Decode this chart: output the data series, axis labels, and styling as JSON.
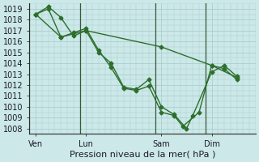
{
  "xlabel": "Pression niveau de la mer( hPa )",
  "background_color": "#cce8e8",
  "grid_color": "#aacece",
  "line_color": "#2d6e2d",
  "vline_color": "#3a5a3a",
  "ylim": [
    1007.5,
    1019.5
  ],
  "yticks": [
    1008,
    1009,
    1010,
    1011,
    1012,
    1013,
    1014,
    1015,
    1016,
    1017,
    1018,
    1019
  ],
  "xtick_labels": [
    "Ven",
    "Lun",
    "Sam",
    "Dim"
  ],
  "xtick_positions": [
    0.5,
    4.5,
    10.5,
    14.5
  ],
  "xlim": [
    0,
    18
  ],
  "series1_x": [
    0.5,
    1.5,
    2.5,
    3.5,
    4.5,
    5.5,
    6.5,
    7.5,
    8.5,
    9.5,
    10.5,
    11.5,
    12.5,
    13.0,
    14.5,
    15.5,
    16.5
  ],
  "series1_y": [
    1018.5,
    1019.2,
    1018.2,
    1016.5,
    1017.0,
    1015.0,
    1014.0,
    1011.8,
    1011.6,
    1012.5,
    1010.0,
    1009.3,
    1008.0,
    1009.2,
    1013.2,
    1013.8,
    1012.8
  ],
  "series2_x": [
    0.5,
    1.5,
    2.5,
    3.5,
    4.5,
    5.5,
    6.5,
    7.5,
    8.5,
    9.5,
    10.5,
    11.5,
    12.2,
    13.5,
    14.5,
    15.5,
    16.5
  ],
  "series2_y": [
    1018.5,
    1019.0,
    1016.4,
    1016.8,
    1017.2,
    1015.2,
    1013.6,
    1011.7,
    1011.5,
    1011.9,
    1009.5,
    1009.2,
    1008.2,
    1009.5,
    1013.8,
    1013.5,
    1012.5
  ],
  "series3_x": [
    0.5,
    2.5,
    4.5,
    10.5,
    14.5,
    16.5
  ],
  "series3_y": [
    1018.5,
    1016.4,
    1017.0,
    1015.5,
    1013.8,
    1012.7
  ],
  "vline_positions": [
    0,
    4,
    10,
    14
  ],
  "marker_size": 2.5,
  "line_width": 1.0,
  "tick_fontsize": 7,
  "xlabel_fontsize": 8
}
